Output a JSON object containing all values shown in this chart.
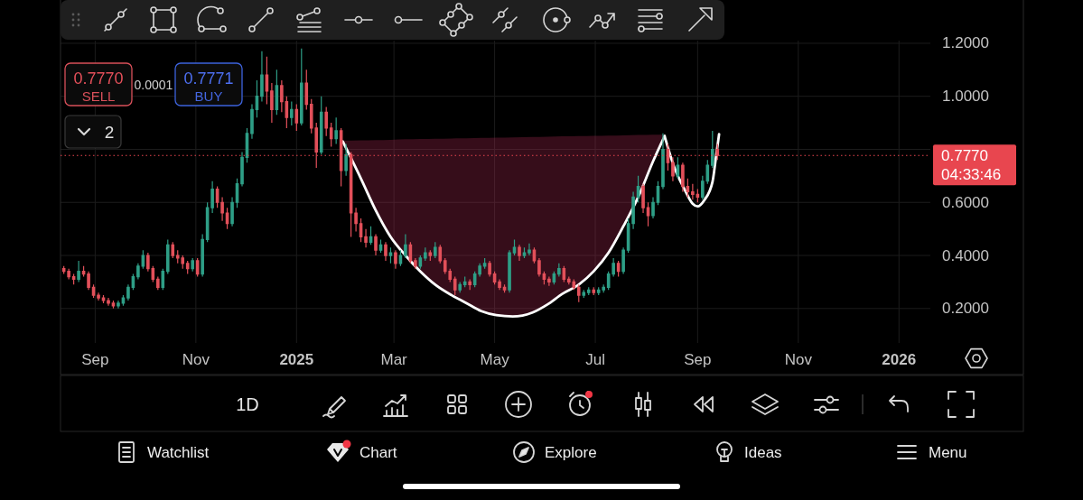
{
  "chart_data": {
    "type": "candlestick",
    "x": [
      "2024-08-13",
      "2024-08-16",
      "2024-08-19",
      "2024-08-22",
      "2024-08-25",
      "2024-08-28",
      "2024-08-31",
      "2024-09-03",
      "2024-09-06",
      "2024-09-09",
      "2024-09-12",
      "2024-09-15",
      "2024-09-18",
      "2024-09-21",
      "2024-09-24",
      "2024-09-27",
      "2024-09-30",
      "2024-10-03",
      "2024-10-06",
      "2024-10-09",
      "2024-10-12",
      "2024-10-15",
      "2024-10-18",
      "2024-10-21",
      "2024-10-24",
      "2024-10-27",
      "2024-10-30",
      "2024-11-02",
      "2024-11-05",
      "2024-11-08",
      "2024-11-11",
      "2024-11-14",
      "2024-11-17",
      "2024-11-20",
      "2024-11-23",
      "2024-11-26",
      "2024-11-29",
      "2024-12-02",
      "2024-12-05",
      "2024-12-08",
      "2024-12-11",
      "2024-12-14",
      "2024-12-17",
      "2024-12-20",
      "2024-12-23",
      "2024-12-26",
      "2024-12-29",
      "2025-01-01",
      "2025-01-04",
      "2025-01-07",
      "2025-01-10",
      "2025-01-13",
      "2025-01-16",
      "2025-01-19",
      "2025-01-22",
      "2025-01-25",
      "2025-01-28",
      "2025-01-31",
      "2025-02-03",
      "2025-02-06",
      "2025-02-09",
      "2025-02-12",
      "2025-02-15",
      "2025-02-18",
      "2025-02-21",
      "2025-02-24",
      "2025-02-27",
      "2025-03-02",
      "2025-03-05",
      "2025-03-08",
      "2025-03-11",
      "2025-03-14",
      "2025-03-17",
      "2025-03-20",
      "2025-03-23",
      "2025-03-26",
      "2025-03-29",
      "2025-04-01",
      "2025-04-04",
      "2025-04-07",
      "2025-04-10",
      "2025-04-13",
      "2025-04-16",
      "2025-04-19",
      "2025-04-22",
      "2025-04-25",
      "2025-04-28",
      "2025-05-01",
      "2025-05-04",
      "2025-05-07",
      "2025-05-10",
      "2025-05-13",
      "2025-05-16",
      "2025-05-19",
      "2025-05-22",
      "2025-05-25",
      "2025-05-28",
      "2025-05-31",
      "2025-06-03",
      "2025-06-06",
      "2025-06-09",
      "2025-06-12",
      "2025-06-15",
      "2025-06-18",
      "2025-06-21",
      "2025-06-24",
      "2025-06-27",
      "2025-06-30",
      "2025-07-03",
      "2025-07-06",
      "2025-07-09",
      "2025-07-12",
      "2025-07-15",
      "2025-07-18",
      "2025-07-21",
      "2025-07-24",
      "2025-07-27",
      "2025-07-30",
      "2025-08-02",
      "2025-08-05",
      "2025-08-08",
      "2025-08-11",
      "2025-08-14",
      "2025-08-17",
      "2025-08-20",
      "2025-08-23",
      "2025-08-26",
      "2025-08-29",
      "2025-09-01",
      "2025-09-04",
      "2025-09-07",
      "2025-09-10",
      "2025-09-13"
    ],
    "ohlc": [
      [
        0.35,
        0.36,
        0.33,
        0.34
      ],
      [
        0.34,
        0.35,
        0.31,
        0.32
      ],
      [
        0.32,
        0.33,
        0.29,
        0.31
      ],
      [
        0.31,
        0.38,
        0.3,
        0.34
      ],
      [
        0.34,
        0.36,
        0.32,
        0.33
      ],
      [
        0.33,
        0.34,
        0.27,
        0.28
      ],
      [
        0.28,
        0.29,
        0.24,
        0.25
      ],
      [
        0.25,
        0.26,
        0.23,
        0.24
      ],
      [
        0.24,
        0.25,
        0.22,
        0.23
      ],
      [
        0.23,
        0.24,
        0.21,
        0.22
      ],
      [
        0.22,
        0.23,
        0.2,
        0.21
      ],
      [
        0.21,
        0.23,
        0.2,
        0.22
      ],
      [
        0.22,
        0.25,
        0.21,
        0.24
      ],
      [
        0.24,
        0.29,
        0.23,
        0.28
      ],
      [
        0.28,
        0.33,
        0.27,
        0.32
      ],
      [
        0.32,
        0.37,
        0.31,
        0.36
      ],
      [
        0.36,
        0.42,
        0.35,
        0.4
      ],
      [
        0.4,
        0.41,
        0.34,
        0.35
      ],
      [
        0.35,
        0.36,
        0.3,
        0.31
      ],
      [
        0.31,
        0.32,
        0.27,
        0.28
      ],
      [
        0.28,
        0.35,
        0.27,
        0.34
      ],
      [
        0.34,
        0.46,
        0.33,
        0.44
      ],
      [
        0.44,
        0.45,
        0.39,
        0.4
      ],
      [
        0.4,
        0.42,
        0.37,
        0.39
      ],
      [
        0.39,
        0.4,
        0.35,
        0.37
      ],
      [
        0.37,
        0.38,
        0.33,
        0.35
      ],
      [
        0.35,
        0.39,
        0.34,
        0.38
      ],
      [
        0.38,
        0.39,
        0.32,
        0.33
      ],
      [
        0.33,
        0.48,
        0.32,
        0.46
      ],
      [
        0.46,
        0.6,
        0.45,
        0.58
      ],
      [
        0.58,
        0.68,
        0.56,
        0.65
      ],
      [
        0.65,
        0.66,
        0.58,
        0.6
      ],
      [
        0.6,
        0.62,
        0.53,
        0.56
      ],
      [
        0.56,
        0.58,
        0.5,
        0.52
      ],
      [
        0.52,
        0.62,
        0.51,
        0.6
      ],
      [
        0.6,
        0.69,
        0.58,
        0.67
      ],
      [
        0.67,
        0.79,
        0.66,
        0.77
      ],
      [
        0.77,
        0.88,
        0.75,
        0.86
      ],
      [
        0.86,
        0.97,
        0.84,
        0.95
      ],
      [
        0.95,
        1.06,
        0.92,
        1.0
      ],
      [
        1.0,
        1.17,
        0.98,
        1.08
      ],
      [
        1.08,
        1.15,
        0.97,
        1.02
      ],
      [
        1.02,
        1.05,
        0.9,
        0.95
      ],
      [
        0.95,
        1.1,
        0.93,
        1.04
      ],
      [
        1.04,
        1.06,
        0.94,
        0.98
      ],
      [
        0.98,
        1.0,
        0.88,
        0.92
      ],
      [
        0.92,
        0.98,
        0.89,
        0.95
      ],
      [
        0.95,
        0.97,
        0.87,
        0.9
      ],
      [
        0.9,
        1.18,
        0.89,
        1.05
      ],
      [
        1.05,
        1.1,
        0.95,
        0.97
      ],
      [
        0.97,
        0.99,
        0.86,
        0.88
      ],
      [
        0.88,
        0.9,
        0.73,
        0.79
      ],
      [
        0.79,
        1.0,
        0.78,
        0.94
      ],
      [
        0.94,
        0.96,
        0.85,
        0.88
      ],
      [
        0.88,
        0.9,
        0.81,
        0.84
      ],
      [
        0.84,
        0.92,
        0.82,
        0.87
      ],
      [
        0.87,
        0.88,
        0.66,
        0.72
      ],
      [
        0.72,
        0.82,
        0.7,
        0.78
      ],
      [
        0.78,
        0.79,
        0.47,
        0.56
      ],
      [
        0.56,
        0.58,
        0.49,
        0.52
      ],
      [
        0.52,
        0.54,
        0.45,
        0.47
      ],
      [
        0.47,
        0.5,
        0.43,
        0.45
      ],
      [
        0.45,
        0.51,
        0.44,
        0.47
      ],
      [
        0.47,
        0.48,
        0.4,
        0.42
      ],
      [
        0.42,
        0.46,
        0.41,
        0.44
      ],
      [
        0.44,
        0.45,
        0.38,
        0.4
      ],
      [
        0.4,
        0.43,
        0.37,
        0.41
      ],
      [
        0.41,
        0.42,
        0.35,
        0.37
      ],
      [
        0.37,
        0.42,
        0.36,
        0.4
      ],
      [
        0.4,
        0.48,
        0.39,
        0.44
      ],
      [
        0.44,
        0.45,
        0.37,
        0.38
      ],
      [
        0.38,
        0.39,
        0.35,
        0.36
      ],
      [
        0.36,
        0.4,
        0.35,
        0.39
      ],
      [
        0.39,
        0.43,
        0.38,
        0.41
      ],
      [
        0.41,
        0.42,
        0.38,
        0.4
      ],
      [
        0.4,
        0.45,
        0.39,
        0.43
      ],
      [
        0.43,
        0.44,
        0.37,
        0.38
      ],
      [
        0.38,
        0.39,
        0.33,
        0.34
      ],
      [
        0.34,
        0.35,
        0.3,
        0.31
      ],
      [
        0.31,
        0.32,
        0.25,
        0.27
      ],
      [
        0.27,
        0.3,
        0.26,
        0.29
      ],
      [
        0.29,
        0.32,
        0.28,
        0.3
      ],
      [
        0.3,
        0.31,
        0.27,
        0.29
      ],
      [
        0.29,
        0.34,
        0.28,
        0.33
      ],
      [
        0.33,
        0.37,
        0.32,
        0.36
      ],
      [
        0.36,
        0.39,
        0.35,
        0.37
      ],
      [
        0.37,
        0.38,
        0.32,
        0.33
      ],
      [
        0.33,
        0.34,
        0.29,
        0.3
      ],
      [
        0.3,
        0.31,
        0.27,
        0.28
      ],
      [
        0.28,
        0.29,
        0.26,
        0.27
      ],
      [
        0.27,
        0.42,
        0.26,
        0.41
      ],
      [
        0.41,
        0.46,
        0.4,
        0.43
      ],
      [
        0.43,
        0.44,
        0.38,
        0.4
      ],
      [
        0.4,
        0.43,
        0.39,
        0.41
      ],
      [
        0.41,
        0.445,
        0.4,
        0.42
      ],
      [
        0.42,
        0.43,
        0.37,
        0.38
      ],
      [
        0.38,
        0.39,
        0.32,
        0.33
      ],
      [
        0.33,
        0.34,
        0.29,
        0.31
      ],
      [
        0.31,
        0.32,
        0.285,
        0.3
      ],
      [
        0.3,
        0.34,
        0.29,
        0.33
      ],
      [
        0.33,
        0.37,
        0.32,
        0.35
      ],
      [
        0.35,
        0.36,
        0.3,
        0.31
      ],
      [
        0.31,
        0.32,
        0.29,
        0.3
      ],
      [
        0.3,
        0.31,
        0.27,
        0.28
      ],
      [
        0.28,
        0.29,
        0.224,
        0.25
      ],
      [
        0.25,
        0.27,
        0.24,
        0.26
      ],
      [
        0.26,
        0.28,
        0.25,
        0.27
      ],
      [
        0.27,
        0.28,
        0.25,
        0.26
      ],
      [
        0.26,
        0.28,
        0.25,
        0.27
      ],
      [
        0.27,
        0.29,
        0.26,
        0.28
      ],
      [
        0.28,
        0.34,
        0.27,
        0.33
      ],
      [
        0.33,
        0.39,
        0.32,
        0.37
      ],
      [
        0.37,
        0.38,
        0.32,
        0.34
      ],
      [
        0.34,
        0.43,
        0.33,
        0.42
      ],
      [
        0.42,
        0.54,
        0.41,
        0.52
      ],
      [
        0.52,
        0.64,
        0.5,
        0.62
      ],
      [
        0.62,
        0.7,
        0.6,
        0.66
      ],
      [
        0.66,
        0.67,
        0.56,
        0.58
      ],
      [
        0.58,
        0.6,
        0.51,
        0.55
      ],
      [
        0.55,
        0.62,
        0.54,
        0.6
      ],
      [
        0.6,
        0.68,
        0.59,
        0.66
      ],
      [
        0.66,
        0.86,
        0.65,
        0.8
      ],
      [
        0.8,
        0.82,
        0.72,
        0.75
      ],
      [
        0.75,
        0.77,
        0.68,
        0.7
      ],
      [
        0.7,
        0.77,
        0.69,
        0.74
      ],
      [
        0.74,
        0.75,
        0.64,
        0.66
      ],
      [
        0.66,
        0.69,
        0.62,
        0.64
      ],
      [
        0.64,
        0.67,
        0.61,
        0.63
      ],
      [
        0.63,
        0.65,
        0.6,
        0.62
      ],
      [
        0.62,
        0.7,
        0.61,
        0.68
      ],
      [
        0.68,
        0.76,
        0.67,
        0.74
      ],
      [
        0.74,
        0.87,
        0.73,
        0.8
      ],
      [
        0.8,
        0.82,
        0.76,
        0.777
      ]
    ],
    "colors": [
      "#e2505a",
      "#e2505a",
      "#e2505a",
      "#2e9e86",
      "#e2505a",
      "#e2505a",
      "#e2505a",
      "#e2505a",
      "#e2505a",
      "#e2505a",
      "#e2505a",
      "#2e9e86",
      "#2e9e86",
      "#2e9e86",
      "#2e9e86",
      "#2e9e86",
      "#2e9e86",
      "#e2505a",
      "#e2505a",
      "#e2505a",
      "#2e9e86",
      "#2e9e86",
      "#e2505a",
      "#e2505a",
      "#e2505a",
      "#e2505a",
      "#2e9e86",
      "#e2505a",
      "#2e9e86",
      "#2e9e86",
      "#2e9e86",
      "#e2505a",
      "#e2505a",
      "#e2505a",
      "#2e9e86",
      "#2e9e86",
      "#2e9e86",
      "#2e9e86",
      "#2e9e86",
      "#2e9e86",
      "#2e9e86",
      "#e2505a",
      "#e2505a",
      "#2e9e86",
      "#e2505a",
      "#e2505a",
      "#2e9e86",
      "#e2505a",
      "#2e9e86",
      "#e2505a",
      "#e2505a",
      "#e2505a",
      "#2e9e86",
      "#e2505a",
      "#e2505a",
      "#2e9e86",
      "#e2505a",
      "#2e9e86",
      "#e2505a",
      "#e2505a",
      "#e2505a",
      "#e2505a",
      "#2e9e86",
      "#e2505a",
      "#2e9e86",
      "#e2505a",
      "#2e9e86",
      "#e2505a",
      "#2e9e86",
      "#2e9e86",
      "#e2505a",
      "#e2505a",
      "#2e9e86",
      "#2e9e86",
      "#e2505a",
      "#2e9e86",
      "#e2505a",
      "#e2505a",
      "#e2505a",
      "#e2505a",
      "#2e9e86",
      "#2e9e86",
      "#e2505a",
      "#2e9e86",
      "#2e9e86",
      "#2e9e86",
      "#e2505a",
      "#e2505a",
      "#e2505a",
      "#e2505a",
      "#2e9e86",
      "#2e9e86",
      "#e2505a",
      "#2e9e86",
      "#2e9e86",
      "#e2505a",
      "#e2505a",
      "#e2505a",
      "#e2505a",
      "#2e9e86",
      "#2e9e86",
      "#e2505a",
      "#e2505a",
      "#e2505a",
      "#e2505a",
      "#2e9e86",
      "#2e9e86",
      "#e2505a",
      "#2e9e86",
      "#2e9e86",
      "#2e9e86",
      "#2e9e86",
      "#e2505a",
      "#2e9e86",
      "#2e9e86",
      "#2e9e86",
      "#2e9e86",
      "#e2505a",
      "#e2505a",
      "#2e9e86",
      "#2e9e86",
      "#2e9e86",
      "#e2505a",
      "#e2505a",
      "#2e9e86",
      "#e2505a",
      "#e2505a",
      "#e2505a",
      "#e2505a",
      "#2e9e86",
      "#2e9e86",
      "#2e9e86",
      "#e2505a"
    ],
    "series": [
      {
        "type": "line",
        "color": "#ffffff",
        "x": [
          "2025-01-29",
          "2025-02-09",
          "2025-02-18",
          "2025-02-27",
          "2025-03-08",
          "2025-03-17",
          "2025-03-26",
          "2025-04-05",
          "2025-04-14",
          "2025-04-23",
          "2025-05-02",
          "2025-05-12",
          "2025-05-24",
          "2025-06-02",
          "2025-06-11",
          "2025-06-21",
          "2025-06-30",
          "2025-07-09",
          "2025-07-18",
          "2025-07-27",
          "2025-08-05",
          "2025-08-12"
        ],
        "values": [
          0.83,
          0.69,
          0.57,
          0.47,
          0.4,
          0.34,
          0.29,
          0.25,
          0.22,
          0.19,
          0.175,
          0.17,
          0.185,
          0.215,
          0.255,
          0.29,
          0.34,
          0.41,
          0.51,
          0.62,
          0.755,
          0.85
        ],
        "lower": [
          0.83,
          0.69,
          0.57,
          0.47,
          0.4,
          0.34,
          0.29,
          0.25,
          0.22,
          0.19,
          0.175,
          0.17,
          0.185,
          0.215,
          0.255,
          0.29,
          0.34,
          0.41,
          0.51,
          0.62,
          0.755,
          0.85
        ],
        "upper": [
          0.833,
          0.834,
          0.835,
          0.836,
          0.838,
          0.839,
          0.84,
          0.841,
          0.842,
          0.843,
          0.844,
          0.845,
          0.847,
          0.848,
          0.849,
          0.85,
          0.851,
          0.852,
          0.853,
          0.854,
          0.855,
          0.856
        ]
      },
      {
        "type": "line",
        "color": "#ffffff",
        "x": [
          "2025-08-12",
          "2025-08-18",
          "2025-08-24",
          "2025-08-29",
          "2025-09-01",
          "2025-09-05",
          "2025-09-10",
          "2025-09-12",
          "2025-09-14"
        ],
        "values": [
          0.85,
          0.73,
          0.65,
          0.595,
          0.585,
          0.608,
          0.677,
          0.765,
          0.857
        ]
      }
    ],
    "xlim": [
      "2024-08-11",
      "2026-01-20"
    ],
    "ylim": [
      0.07,
      1.21
    ],
    "xticks": [
      {
        "value": "2024-09-01",
        "label": "Sep"
      },
      {
        "value": "2024-11-01",
        "label": "Nov"
      },
      {
        "value": "2025-01-01",
        "label": "2025"
      },
      {
        "value": "2025-03-01",
        "label": "Mar"
      },
      {
        "value": "2025-05-01",
        "label": "May"
      },
      {
        "value": "2025-07-01",
        "label": "Jul"
      },
      {
        "value": "2025-09-01",
        "label": "Sep"
      },
      {
        "value": "2025-11-01",
        "label": "Nov"
      },
      {
        "value": "2026-01-01",
        "label": "2026"
      }
    ],
    "yticks": [
      {
        "value": 0.2,
        "label": "0.2000"
      },
      {
        "value": 0.4,
        "label": "0.4000"
      },
      {
        "value": 0.6,
        "label": "0.6000"
      },
      {
        "value": 0.8,
        "label": null
      },
      {
        "value": 1.0,
        "label": "1.0000"
      },
      {
        "value": 1.2,
        "label": "1.2000"
      }
    ],
    "grid": true,
    "ref_lines": [
      {
        "axis": "y",
        "value": 0.777,
        "label": "0.7770\n04:33:46",
        "color": "#e8464f",
        "line_style": "dotted"
      }
    ],
    "annotations": [
      "0.7770",
      "SELL",
      "0.0001",
      "0.7771",
      "BUY",
      "2",
      "1D",
      "Watchlist",
      "Chart",
      "Explore",
      "Ideas",
      "Menu"
    ]
  }
}
